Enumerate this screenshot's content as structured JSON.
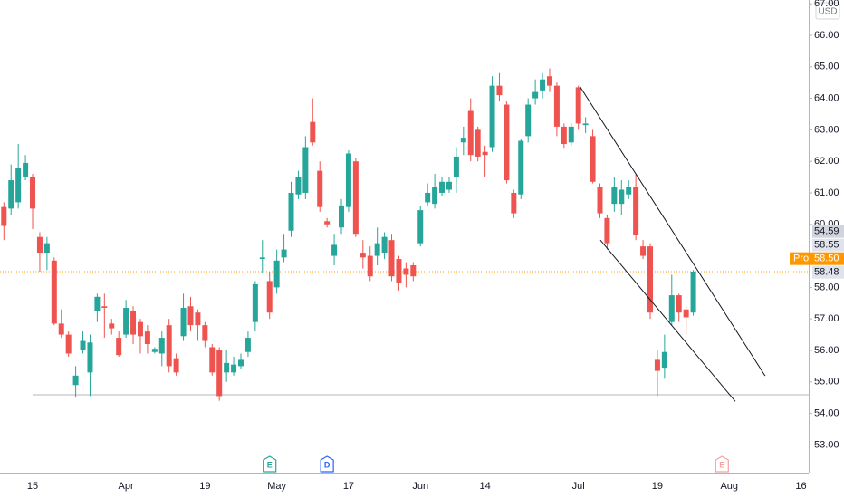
{
  "chart_data": {
    "type": "candlestick",
    "currency": "USD",
    "up_color": "#26a69a",
    "down_color": "#ef5350",
    "categories": [
      null,
      null,
      null,
      null,
      "15",
      null,
      null,
      null,
      null,
      null,
      null,
      null,
      null,
      null,
      null,
      null,
      null,
      "Apr",
      null,
      null,
      null,
      null,
      null,
      null,
      null,
      null,
      null,
      null,
      "19",
      null,
      null,
      null,
      null,
      null,
      null,
      null,
      null,
      null,
      "May",
      null,
      null,
      null,
      null,
      null,
      null,
      null,
      null,
      null,
      "17",
      null,
      null,
      null,
      null,
      null,
      null,
      null,
      null,
      null,
      "Jun",
      null,
      null,
      null,
      null,
      null,
      null,
      null,
      null,
      "14",
      null,
      null,
      null,
      null,
      null,
      null,
      null,
      null,
      null,
      null,
      null,
      null,
      "Jul",
      null,
      null,
      null,
      null,
      null,
      null,
      null,
      null,
      null,
      null,
      "19",
      null,
      null,
      null,
      null,
      null,
      null,
      null,
      null,
      null,
      "Aug",
      null,
      null,
      null,
      null,
      null,
      null,
      null,
      null,
      null,
      "16"
    ],
    "open": [
      60.55,
      60.5,
      60.7,
      61.5,
      61.5,
      59.6,
      59.1,
      58.85,
      56.85,
      56.5,
      54.9,
      56.0,
      55.3,
      57.25,
      57.4,
      56.85,
      56.4,
      56.5,
      57.25,
      56.9,
      56.6,
      55.95,
      55.9,
      56.8,
      55.75,
      56.45,
      57.4,
      57.2,
      56.8,
      56.1,
      56.0,
      55.3,
      55.3,
      55.5,
      55.95,
      56.9,
      58.9,
      58.2,
      58.0,
      58.95,
      59.8,
      60.95,
      61.0,
      63.25,
      61.7,
      60.1,
      59.0,
      59.9,
      60.55,
      62.0,
      59.1,
      59.0,
      59.0,
      59.1,
      59.5,
      58.9,
      58.6,
      58.7,
      59.4,
      60.7,
      60.65,
      61.0,
      61.1,
      61.5,
      62.6,
      63.6,
      63.0,
      62.3,
      62.45,
      64.4,
      63.8,
      61.0,
      60.95,
      62.8,
      64.0,
      64.25,
      64.7,
      64.4,
      63.1,
      62.6,
      64.35,
      63.15,
      62.8,
      61.2,
      60.2,
      60.65,
      60.65,
      60.95,
      61.2,
      59.3,
      59.3,
      55.7,
      55.45,
      56.9,
      57.75,
      57.3,
      57.2,
      null,
      null,
      null,
      null,
      null,
      null,
      null,
      null,
      null,
      null,
      null,
      null,
      null,
      null,
      null
    ],
    "high": [
      60.7,
      61.9,
      62.55,
      62.2,
      61.6,
      59.75,
      59.6,
      58.95,
      57.3,
      56.6,
      55.5,
      56.6,
      56.5,
      57.8,
      57.8,
      57.0,
      56.6,
      57.6,
      57.4,
      57.0,
      56.8,
      56.1,
      56.6,
      57.0,
      55.9,
      57.8,
      57.7,
      57.3,
      56.9,
      56.2,
      56.1,
      56.0,
      55.8,
      55.9,
      56.6,
      58.2,
      59.5,
      58.5,
      59.2,
      59.7,
      61.35,
      61.7,
      62.8,
      64.0,
      62.0,
      60.2,
      59.7,
      60.8,
      62.35,
      62.1,
      59.5,
      59.3,
      59.9,
      59.75,
      59.7,
      59.0,
      58.8,
      58.8,
      60.6,
      61.3,
      61.6,
      61.5,
      61.5,
      62.45,
      63.1,
      64.0,
      63.1,
      62.5,
      64.7,
      64.8,
      63.9,
      61.1,
      62.7,
      64.0,
      64.6,
      64.8,
      64.95,
      64.5,
      63.2,
      63.2,
      64.4,
      63.4,
      63.0,
      61.3,
      60.3,
      61.5,
      61.4,
      61.4,
      61.6,
      59.5,
      59.4,
      56.0,
      56.5,
      58.4,
      57.8,
      57.4,
      58.55,
      null,
      null,
      null,
      null,
      null,
      null,
      null,
      null,
      null,
      null,
      null,
      null,
      null,
      null,
      null
    ],
    "low": [
      59.5,
      60.3,
      60.5,
      61.4,
      59.85,
      58.5,
      58.55,
      56.8,
      56.4,
      55.8,
      54.5,
      55.9,
      54.55,
      56.9,
      56.4,
      56.5,
      55.8,
      56.4,
      56.2,
      55.9,
      55.9,
      55.9,
      55.5,
      55.3,
      55.2,
      56.3,
      56.6,
      56.3,
      56.1,
      55.2,
      54.4,
      55.0,
      55.2,
      55.4,
      55.8,
      56.6,
      58.45,
      57.0,
      57.8,
      58.8,
      59.6,
      60.8,
      60.8,
      62.5,
      60.4,
      59.9,
      58.7,
      59.7,
      60.4,
      59.6,
      58.6,
      58.2,
      58.7,
      58.9,
      58.2,
      57.9,
      58.0,
      58.2,
      59.3,
      60.6,
      60.5,
      60.9,
      61.0,
      61.0,
      62.2,
      62.0,
      62.0,
      61.5,
      62.3,
      63.9,
      61.3,
      60.2,
      60.8,
      62.6,
      63.8,
      64.0,
      64.2,
      62.8,
      62.4,
      62.5,
      63.0,
      62.9,
      61.3,
      60.2,
      59.2,
      60.4,
      60.3,
      60.8,
      59.5,
      58.9,
      57.0,
      54.55,
      55.1,
      56.8,
      56.9,
      56.5,
      57.1,
      null,
      null,
      null,
      null,
      null,
      null,
      null,
      null,
      null,
      null,
      null,
      null,
      null,
      null,
      null
    ],
    "close": [
      59.95,
      61.4,
      61.8,
      61.95,
      60.5,
      59.1,
      59.4,
      56.85,
      56.5,
      55.9,
      55.2,
      56.3,
      56.25,
      57.7,
      57.35,
      56.7,
      55.85,
      57.35,
      56.5,
      56.45,
      56.2,
      56.05,
      56.4,
      55.5,
      55.3,
      57.35,
      56.8,
      56.8,
      56.3,
      55.3,
      54.55,
      55.6,
      55.55,
      55.7,
      56.4,
      58.1,
      58.95,
      57.2,
      58.85,
      59.2,
      61.0,
      61.5,
      62.45,
      62.6,
      60.55,
      60.0,
      59.35,
      60.6,
      62.25,
      59.7,
      58.95,
      58.35,
      59.4,
      59.6,
      58.35,
      58.15,
      58.4,
      58.35,
      60.45,
      61.0,
      61.2,
      61.35,
      61.35,
      62.15,
      62.75,
      62.2,
      62.15,
      62.2,
      64.4,
      64.1,
      61.4,
      60.35,
      62.65,
      63.8,
      64.2,
      64.6,
      64.4,
      63.1,
      62.55,
      63.1,
      63.2,
      63.2,
      61.35,
      60.35,
      59.4,
      61.2,
      61.1,
      61.2,
      59.65,
      59.0,
      57.2,
      55.35,
      55.95,
      57.75,
      57.2,
      57.05,
      58.5,
      null,
      null,
      null,
      null,
      null,
      null,
      null,
      null,
      null,
      null,
      null,
      null,
      null,
      null,
      null
    ],
    "ylim": [
      52.12,
      67.12
    ],
    "yticks": [
      {
        "value": 53,
        "label": "53.00"
      },
      {
        "value": 54,
        "label": "54.00"
      },
      {
        "value": 55,
        "label": "55.00"
      },
      {
        "value": 56,
        "label": "56.00"
      },
      {
        "value": 57,
        "label": "57.00"
      },
      {
        "value": 58,
        "label": "58.00"
      },
      {
        "value": 60,
        "label": "60.00"
      },
      {
        "value": 61,
        "label": "61.00"
      },
      {
        "value": 62,
        "label": "62.00"
      },
      {
        "value": 63,
        "label": "63.00"
      },
      {
        "value": 64,
        "label": "64.00"
      },
      {
        "value": 65,
        "label": "65.00"
      },
      {
        "value": 66,
        "label": "66.00"
      },
      {
        "value": 67,
        "label": "67.00"
      }
    ],
    "price_badges": [
      {
        "value": 58.48,
        "label": "58.48",
        "color": "#e0e3eb",
        "text_color": "#131722",
        "line": false
      },
      {
        "value": 58.5,
        "label": "58.50",
        "prefix": "Pro",
        "color": "#ff9800",
        "text_color": "#ffffff",
        "line": true
      },
      {
        "value": 58.55,
        "label": "58.55",
        "color": "#e0e3eb",
        "text_color": "#131722",
        "line": false
      },
      {
        "value": 54.59,
        "label": "54.59",
        "color": "#d1d4dc",
        "text_color": "#131722",
        "line": true,
        "line_from": 4
      }
    ],
    "trendlines": [
      {
        "start": [
          80.2,
          64.38
        ],
        "end": [
          106.0,
          55.19
        ],
        "color": "#131722"
      },
      {
        "start": [
          83.06,
          59.5
        ],
        "end": [
          101.85,
          54.38
        ],
        "color": "#131722"
      }
    ],
    "events": [
      {
        "label": "E",
        "index": 37,
        "color": "#26a69a"
      },
      {
        "label": "D",
        "index": 45,
        "color": "#2962ff"
      },
      {
        "label": "E",
        "index": 100,
        "color": "#f7a1a0"
      }
    ]
  }
}
